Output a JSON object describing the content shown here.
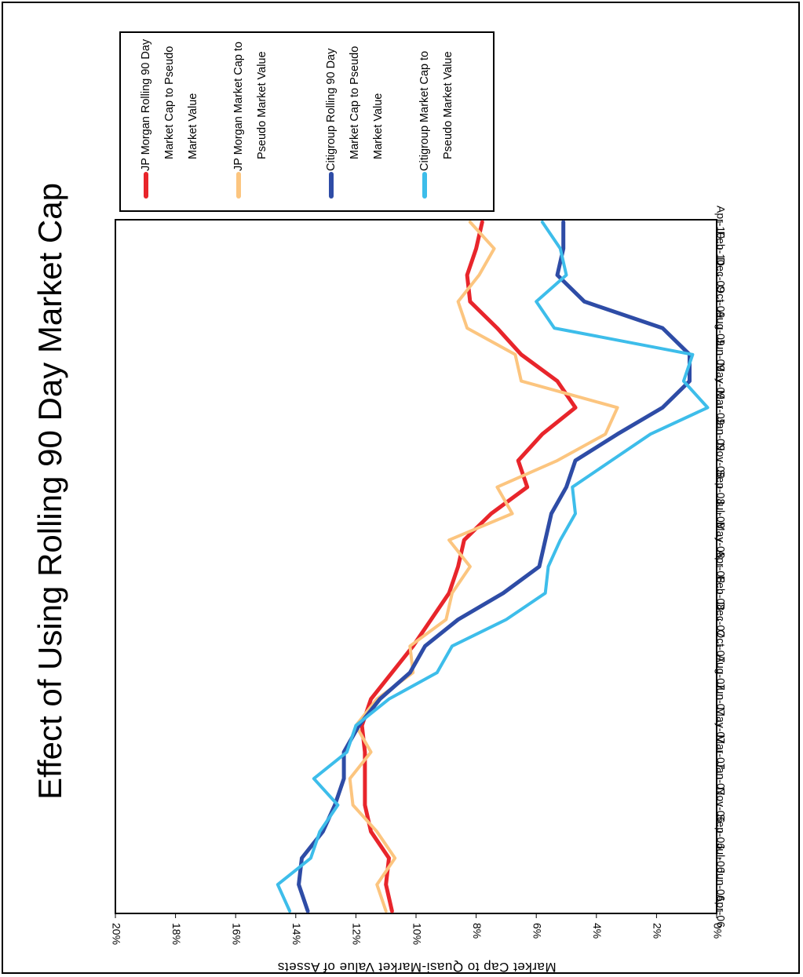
{
  "chart_data": {
    "type": "line",
    "title": "Effect of Using Rolling 90 Day Market Cap",
    "xlabel": "",
    "ylabel": "Market Cap to Quasi-Market Value of Assets",
    "categories": [
      "Apr-06",
      "Jun-06",
      "Jul-06",
      "Sep-06",
      "Nov-06",
      "Jan-07",
      "Mar-07",
      "May-07",
      "Jun-07",
      "Aug-07",
      "Oct-07",
      "Dec-07",
      "Feb-08",
      "Apr-08",
      "May-08",
      "Jul-08",
      "Sep-08",
      "Nov-08",
      "Jan-09",
      "Mar-09",
      "May-09",
      "Jun-09",
      "Aug-09",
      "Oct-09",
      "Dec-09",
      "Feb-10",
      "Apr-10"
    ],
    "y_ticks": [
      "0%",
      "2%",
      "4%",
      "6%",
      "8%",
      "10%",
      "12%",
      "14%",
      "16%",
      "18%",
      "20%"
    ],
    "ylim": [
      0,
      20
    ],
    "grid": false,
    "legend_position": "top-right",
    "series": [
      {
        "name": "JP Morgan Rolling 90 Day Market Cap to Pseudo Market Value",
        "color": "#e8252b",
        "values": [
          10.8,
          11.0,
          10.9,
          11.5,
          11.7,
          11.7,
          11.7,
          11.8,
          11.5,
          10.8,
          10.1,
          9.5,
          8.9,
          8.6,
          8.4,
          7.5,
          6.3,
          6.6,
          5.8,
          4.7,
          5.3,
          6.5,
          7.3,
          8.2,
          8.3,
          8.0,
          7.8
        ]
      },
      {
        "name": "JP Morgan Market Cap to Pseudo Market Value",
        "color": "#fcc57f",
        "values": [
          11.0,
          11.3,
          10.7,
          11.3,
          12.1,
          12.2,
          11.5,
          12.0,
          11.3,
          10.1,
          10.2,
          9.0,
          8.8,
          8.2,
          8.9,
          6.8,
          7.3,
          5.3,
          3.7,
          3.3,
          6.5,
          6.7,
          8.3,
          8.6,
          7.9,
          7.4,
          8.2
        ]
      },
      {
        "name": "Citigroup Rolling 90 Day Market Cap to Pseudo Market Value",
        "color": "#2e4ca6",
        "values": [
          13.6,
          13.9,
          13.8,
          13.1,
          12.7,
          12.4,
          12.4,
          11.9,
          11.2,
          10.2,
          9.7,
          8.6,
          7.1,
          5.9,
          5.7,
          5.5,
          5.0,
          4.7,
          3.3,
          1.8,
          0.9,
          0.9,
          1.8,
          4.4,
          5.3,
          5.1,
          5.1
        ]
      },
      {
        "name": "Citigroup Market Cap to Pseudo Market Value",
        "color": "#3dbdea",
        "values": [
          14.2,
          14.6,
          13.5,
          13.2,
          12.6,
          13.4,
          12.3,
          12.0,
          10.9,
          9.3,
          8.8,
          7.0,
          5.7,
          5.6,
          5.2,
          4.7,
          4.8,
          3.5,
          2.2,
          0.3,
          1.1,
          0.8,
          5.4,
          6.0,
          5.0,
          5.2,
          5.8
        ]
      }
    ]
  }
}
